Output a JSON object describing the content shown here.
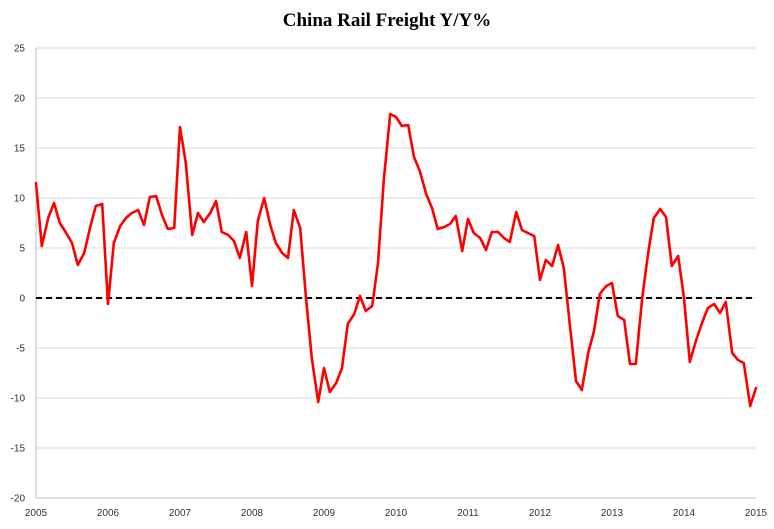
{
  "chart_data": {
    "type": "line",
    "title": "China Rail Freight Y/Y%",
    "xlabel": "",
    "ylabel": "",
    "ylim": [
      -20,
      25
    ],
    "xlim": [
      2005.0,
      2015.0
    ],
    "grid": true,
    "legend": "none",
    "y_ticks": [
      "25",
      "20",
      "15",
      "10",
      "5",
      "0",
      "-5",
      "-10",
      "-15",
      "-20"
    ],
    "x_ticks": [
      "2005",
      "2006",
      "2007",
      "2008",
      "2009",
      "2010",
      "2011",
      "2012",
      "2013",
      "2014",
      "2015"
    ],
    "reference_line": 0,
    "colors": {
      "series": "#ff0000",
      "reference": "#000000",
      "grid": "#d9d9d9"
    },
    "series": [
      {
        "x": [
          2005.0,
          2005.08,
          2005.17,
          2005.25,
          2005.33,
          2005.42,
          2005.5,
          2005.58,
          2005.67,
          2005.75,
          2005.83,
          2005.92,
          2006.0,
          2006.08,
          2006.17,
          2006.25,
          2006.33,
          2006.42,
          2006.5,
          2006.58,
          2006.67,
          2006.75,
          2006.83,
          2006.92,
          2007.0,
          2007.08,
          2007.17,
          2007.25,
          2007.33,
          2007.42,
          2007.5,
          2007.58,
          2007.67,
          2007.75,
          2007.83,
          2007.92,
          2008.0,
          2008.08,
          2008.17,
          2008.25,
          2008.33,
          2008.42,
          2008.5,
          2008.58,
          2008.67,
          2008.75,
          2008.83,
          2008.92,
          2009.0,
          2009.08,
          2009.17,
          2009.25,
          2009.33,
          2009.42,
          2009.5,
          2009.58,
          2009.67,
          2009.75,
          2009.83,
          2009.92,
          2010.0,
          2010.08,
          2010.17,
          2010.25,
          2010.33,
          2010.42,
          2010.5,
          2010.58,
          2010.67,
          2010.75,
          2010.83,
          2010.92,
          2011.0,
          2011.08,
          2011.17,
          2011.25,
          2011.33,
          2011.42,
          2011.5,
          2011.58,
          2011.67,
          2011.75,
          2011.83,
          2011.92,
          2012.0,
          2012.08,
          2012.17,
          2012.25,
          2012.33,
          2012.42,
          2012.5,
          2012.58,
          2012.67,
          2012.75,
          2012.83,
          2012.92,
          2013.0,
          2013.08,
          2013.17,
          2013.25,
          2013.33,
          2013.42,
          2013.5,
          2013.58,
          2013.67,
          2013.75,
          2013.83,
          2013.92,
          2014.0,
          2014.08,
          2014.17,
          2014.25,
          2014.33,
          2014.42,
          2014.5,
          2014.58,
          2014.67,
          2014.75,
          2014.83,
          2014.92,
          2015.0
        ],
        "values": [
          11.5,
          5.2,
          8.0,
          9.5,
          7.5,
          6.5,
          5.5,
          3.3,
          4.5,
          7.0,
          9.2,
          9.4,
          -0.6,
          5.5,
          7.2,
          8.0,
          8.5,
          8.8,
          7.3,
          10.1,
          10.2,
          8.3,
          6.9,
          7.0,
          17.1,
          13.5,
          6.3,
          8.5,
          7.6,
          8.5,
          9.7,
          6.6,
          6.3,
          5.7,
          4.0,
          6.6,
          1.2,
          7.7,
          10.0,
          7.4,
          5.5,
          4.5,
          4.0,
          8.8,
          7.0,
          0.0,
          -6.0,
          -10.4,
          -7.0,
          -9.4,
          -8.5,
          -7.0,
          -2.6,
          -1.6,
          0.2,
          -1.3,
          -0.8,
          3.5,
          11.8,
          18.4,
          18.1,
          17.2,
          17.3,
          14.1,
          12.7,
          10.4,
          9.0,
          6.9,
          7.1,
          7.4,
          8.2,
          4.7,
          7.9,
          6.5,
          6.0,
          4.8,
          6.6,
          6.6,
          6.0,
          5.6,
          8.6,
          6.8,
          6.5,
          6.2,
          1.8,
          3.8,
          3.2,
          5.3,
          3.0,
          -3.0,
          -8.3,
          -9.2,
          -5.5,
          -3.3,
          0.4,
          1.2,
          1.5,
          -1.8,
          -2.2,
          -6.6,
          -6.6,
          0.0,
          4.4,
          8.0,
          8.9,
          8.1,
          3.2,
          4.2,
          0.0,
          -6.4,
          -4.2,
          -2.5,
          -1.0,
          -0.6,
          -1.5,
          -0.4,
          -5.5,
          -6.2,
          -6.5,
          -10.8,
          -9.0
        ]
      }
    ]
  }
}
